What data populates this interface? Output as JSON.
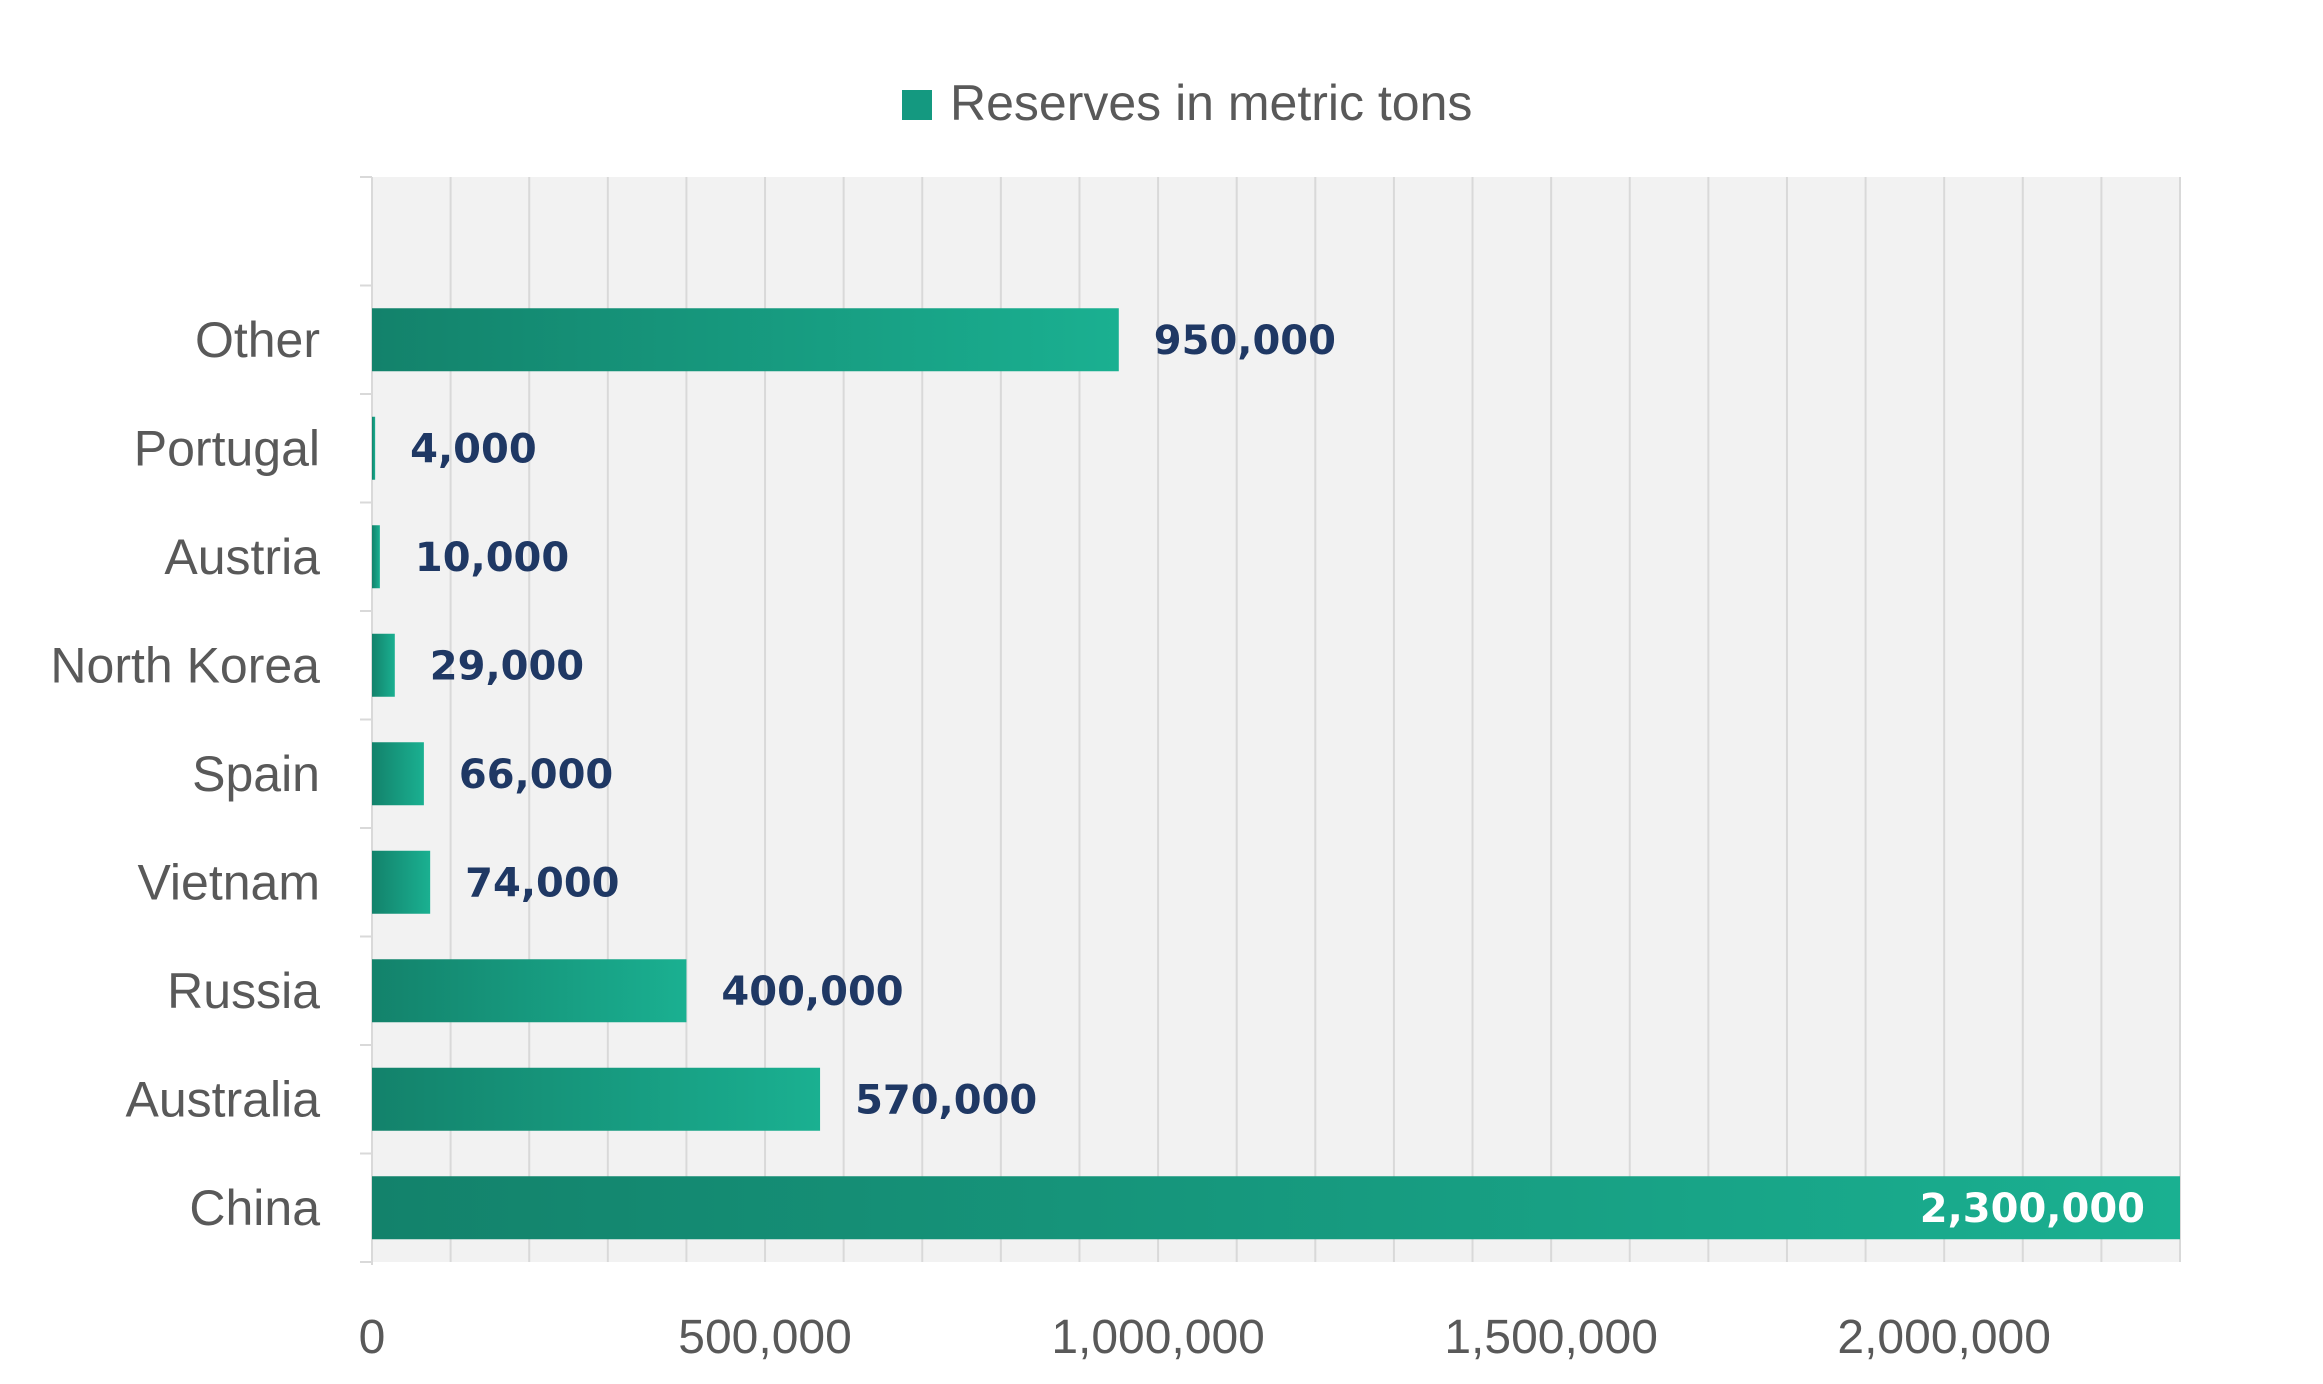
{
  "chart_data": {
    "type": "bar",
    "orientation": "horizontal",
    "categories": [
      "China",
      "Australia",
      "Russia",
      "Vietnam",
      "Spain",
      "North Korea",
      "Austria",
      "Portugal",
      "Other"
    ],
    "series": [
      {
        "name": "Reserves in metric tons",
        "values": [
          2300000,
          570000,
          400000,
          74000,
          66000,
          29000,
          10000,
          4000,
          950000
        ],
        "value_labels": [
          "2,300,000",
          "570,000",
          "400,000",
          "74,000",
          "66,000",
          "29,000",
          "10,000",
          "4,000",
          "950,000"
        ]
      }
    ],
    "xlim": [
      0,
      2300000
    ],
    "x_ticks": [
      0,
      500000,
      1000000,
      1500000,
      2000000
    ],
    "x_tick_labels": [
      "0",
      "500,000",
      "1,000,000",
      "1,500,000",
      "2,000,000"
    ],
    "minor_grid_step": 100000,
    "grid": true,
    "legend": "top-center",
    "title": "",
    "xlabel": "",
    "ylabel": "",
    "colors": {
      "bar_dark": "#13826b",
      "bar_light": "#1ab091",
      "legend_swatch": "#149980",
      "plot_bg": "#f2f2f2",
      "grid": "#d9d9d9",
      "label_dark": "#1f3864",
      "label_inside": "#ffffff",
      "axis_text": "#595959"
    }
  }
}
